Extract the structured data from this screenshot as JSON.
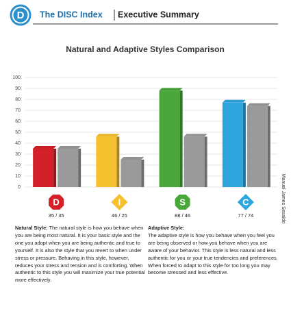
{
  "header": {
    "logo": "D",
    "title": "The DISC Index",
    "subtitle": "Executive Summary"
  },
  "side_note": "Manuel James Sesaldo",
  "chart_data": {
    "type": "bar",
    "title": "Natural and Adaptive Styles Comparison",
    "categories": [
      "D",
      "I",
      "S",
      "C"
    ],
    "series": [
      {
        "colors": [
          "#d42027",
          "#f5c02d",
          "#4aa83a",
          "#2ea6dd"
        ],
        "values": [
          35,
          46,
          88,
          77
        ]
      },
      {
        "color": "#9a9a9a",
        "values": [
          35,
          25,
          46,
          74
        ]
      }
    ],
    "value_labels": [
      "35 / 35",
      "46 / 25",
      "88 / 46",
      "77 / 74"
    ],
    "ylim": [
      0,
      100
    ],
    "yticks": [
      0,
      10,
      20,
      30,
      40,
      50,
      60,
      70,
      80,
      90,
      100
    ],
    "grid": true
  },
  "sections": [
    {
      "title": "Natural Style:",
      "text": "The natural style is how you behave when you are being  most natural. It is your basic style and the one you adopt when you are being authentic and true to yourself.  It is also the style that you revert to when under stress or pressure. Behaving in this style, however, reduces your stress and tension and is comforting. When authentic to this style you will maximize your true potential more effectively."
    },
    {
      "title": "Adaptive Style:",
      "text": "The adaptive style is how you behave when you feel you are being observed or how you behave when you are aware of your behavior. This style is less natural and less authentic for you or your true tendencies and preferences. When forced to adapt to this style for too long you may become stressed and less effective."
    }
  ]
}
